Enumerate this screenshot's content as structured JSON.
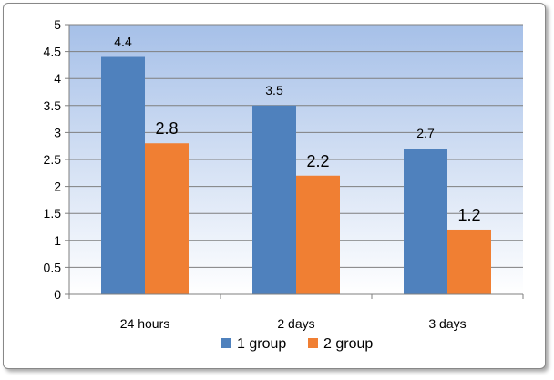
{
  "chart_data": {
    "type": "bar",
    "categories": [
      "24 hours",
      "2 days",
      "3 days"
    ],
    "series": [
      {
        "name": "1 group",
        "values": [
          4.4,
          3.5,
          2.7
        ],
        "labels": [
          "4.4",
          "3.5",
          "2.7"
        ],
        "color": "#4f81bd"
      },
      {
        "name": "2 group",
        "values": [
          2.8,
          2.2,
          1.2
        ],
        "labels": [
          "2.8",
          "2.2",
          "1.2"
        ],
        "color": "#f07f33"
      }
    ],
    "title": "",
    "xlabel": "",
    "ylabel": "",
    "ylim": [
      0,
      5
    ],
    "yticks": [
      "0",
      "0.5",
      "1",
      "1.5",
      "2",
      "2.5",
      "3",
      "3.5",
      "4",
      "4.5",
      "5"
    ],
    "grid": true,
    "legend": "bottom",
    "plot_background": {
      "top": "#a6c0e8",
      "bottom": "#ffffff"
    }
  }
}
